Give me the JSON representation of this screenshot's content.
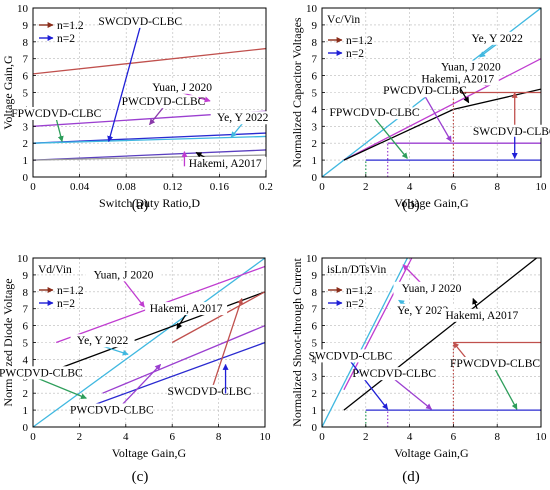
{
  "chart_data": [
    {
      "panel": "(a)",
      "type": "line",
      "xlabel": "Switch Duty Ratio,D",
      "ylabel": "Voltage Gain,G",
      "xlim": [
        0,
        0.2
      ],
      "ylim": [
        0,
        10
      ],
      "xticks": [
        "0",
        "0.04",
        "0.08",
        "0.12",
        "0.16",
        "0.2"
      ],
      "yticks": [
        "0",
        "1",
        "2",
        "3",
        "4",
        "5",
        "6",
        "7",
        "8",
        "9",
        "10"
      ],
      "legend": [
        {
          "label": "n=1.2",
          "color": "#8b2d1a"
        },
        {
          "label": "n=2",
          "color": "#1f1fd6"
        }
      ],
      "series": [
        {
          "color": "#c0504d",
          "x": [
            0,
            0.2
          ],
          "y": [
            6.1,
            7.6
          ]
        },
        {
          "color": "#9b3fd0",
          "x": [
            0,
            0.2
          ],
          "y": [
            3.0,
            3.9
          ]
        },
        {
          "color": "#2a2ad0",
          "x": [
            0,
            0.2
          ],
          "y": [
            2.0,
            2.6
          ]
        },
        {
          "color": "#40b8e0",
          "x": [
            0,
            0.2
          ],
          "y": [
            2.0,
            2.4
          ]
        },
        {
          "color": "#5a3fbf",
          "x": [
            0,
            0.2
          ],
          "y": [
            1.0,
            1.6
          ]
        },
        {
          "color": "#999999",
          "x": [
            0,
            0.2
          ],
          "y": [
            1.0,
            1.3
          ]
        }
      ],
      "annotations": [
        {
          "text": "SWCDVD-CLBC",
          "tx": 0.092,
          "ty": 9.0,
          "ax": 0.065,
          "ay": 2.1,
          "color": "#1f1fd6"
        },
        {
          "text": "Yuan, J 2020",
          "tx": 0.128,
          "ty": 5.1,
          "ax": 0.152,
          "ay": 4.5,
          "color": "#c03cd0"
        },
        {
          "text": "PWCDVD-CLBC",
          "tx": 0.112,
          "ty": 4.25,
          "ax": 0.1,
          "ay": 3.1,
          "color": "#8a3aaa"
        },
        {
          "text": "Ye, Y 2022",
          "tx": 0.18,
          "ty": 3.3,
          "ax": 0.17,
          "ay": 2.35,
          "color": "#40b8e0"
        },
        {
          "text": "FPWCDVD-CLBC",
          "tx": 0.02,
          "ty": 3.55,
          "ax": 0.025,
          "ay": 2.1,
          "color": "#2e9e5b"
        },
        {
          "text": "Hakemi, A2017",
          "tx": 0.165,
          "ty": 0.6,
          "ax": 0.14,
          "ay": 1.45,
          "color": "#000000"
        },
        {
          "text": "",
          "tx": 0.13,
          "ty": 0.75,
          "ax": 0.13,
          "ay": 1.5,
          "color": "#c03cd0"
        }
      ]
    },
    {
      "panel": "(b)",
      "type": "line",
      "xlabel": "Voltage Gain,G",
      "ylabel": "Normalized Capacitor Voltages",
      "xlim": [
        0,
        10
      ],
      "ylim": [
        0,
        10
      ],
      "xticks": [
        "0",
        "2",
        "4",
        "6",
        "8",
        "10"
      ],
      "yticks": [
        "0",
        "1",
        "2",
        "3",
        "4",
        "5",
        "6",
        "7",
        "8",
        "9",
        "10"
      ],
      "inner_label": "Vc/Vin",
      "legend": [
        {
          "label": "n=1.2",
          "color": "#8b2d1a"
        },
        {
          "label": "n=2",
          "color": "#1f1fd6"
        }
      ],
      "series": [
        {
          "color": "#40b8e0",
          "x": [
            0,
            10
          ],
          "y": [
            0,
            10
          ]
        },
        {
          "color": "#c03cd0",
          "x": [
            1,
            10
          ],
          "y": [
            1,
            7
          ]
        },
        {
          "color": "#000000",
          "x": [
            1,
            6,
            10
          ],
          "y": [
            1,
            4.0,
            5.2
          ]
        },
        {
          "color": "#c0504d",
          "x": [
            6,
            10
          ],
          "y": [
            5,
            5
          ]
        },
        {
          "color": "#9b3fd0",
          "x": [
            3,
            10
          ],
          "y": [
            2,
            2
          ]
        },
        {
          "color": "#2a2ad0",
          "x": [
            2,
            10
          ],
          "y": [
            1,
            1
          ]
        },
        {
          "color": "#c0504d",
          "x": [
            6,
            6
          ],
          "y": [
            0,
            5
          ],
          "dotted": true
        },
        {
          "color": "#9b3fd0",
          "x": [
            3,
            3
          ],
          "y": [
            0,
            2
          ],
          "dotted": true
        },
        {
          "color": "#2e9e5b",
          "x": [
            2,
            2
          ],
          "y": [
            0,
            1
          ],
          "dotted": true
        }
      ],
      "annotations": [
        {
          "text": "Ye, Y 2022",
          "tx": 8.0,
          "ty": 8.0,
          "ax": 7.2,
          "ay": 7.1,
          "color": "#40b8e0"
        },
        {
          "text": "Yuan, J 2020",
          "tx": 6.8,
          "ty": 6.3,
          "ax": 7.5,
          "ay": 5.4,
          "color": "#c03cd0"
        },
        {
          "text": "Hakemi, A2017",
          "tx": 6.2,
          "ty": 5.6,
          "ax": 6.7,
          "ay": 4.4,
          "color": "#000000"
        },
        {
          "text": "PWCDVD-CLBC",
          "tx": 4.7,
          "ty": 4.9,
          "ax": 5.9,
          "ay": 2.1,
          "color": "#9b3fd0"
        },
        {
          "text": "FPWCDVD-CLBC",
          "tx": 2.4,
          "ty": 3.6,
          "ax": 3.9,
          "ay": 1.1,
          "color": "#2e9e5b"
        },
        {
          "text": "SWCDVD-CLBC",
          "tx": 8.8,
          "ty": 2.5,
          "ax": 8.8,
          "ay": 5.0,
          "color": "#c0504d"
        },
        {
          "text": "",
          "tx": 8.8,
          "ty": 2.5,
          "ax": 8.8,
          "ay": 1.1,
          "color": "#1f1fd6"
        }
      ]
    },
    {
      "panel": "(c)",
      "type": "line",
      "xlabel": "Voltage Gain,G",
      "ylabel": "Normalized Diode Voltage",
      "xlim": [
        0,
        10
      ],
      "ylim": [
        0,
        10
      ],
      "xticks": [
        "0",
        "2",
        "4",
        "6",
        "8",
        "10"
      ],
      "yticks": [
        "0",
        "1",
        "2",
        "3",
        "4",
        "5",
        "6",
        "7",
        "8",
        "9",
        "10"
      ],
      "inner_label": "Vd/Vin",
      "legend": [
        {
          "label": "n=1.2",
          "color": "#8b2d1a"
        },
        {
          "label": "n=2",
          "color": "#1f1fd6"
        }
      ],
      "series": [
        {
          "color": "#40b8e0",
          "x": [
            0,
            10
          ],
          "y": [
            0,
            10
          ]
        },
        {
          "color": "#c03cd0",
          "x": [
            1,
            10
          ],
          "y": [
            5,
            9.5
          ]
        },
        {
          "color": "#000000",
          "x": [
            1,
            10
          ],
          "y": [
            3.4,
            8.0
          ]
        },
        {
          "color": "#c0504d",
          "x": [
            6,
            10
          ],
          "y": [
            5,
            8
          ]
        },
        {
          "color": "#9b3fd0",
          "x": [
            3,
            10
          ],
          "y": [
            2,
            6
          ]
        },
        {
          "color": "#2a2ad0",
          "x": [
            2,
            10
          ],
          "y": [
            1,
            5
          ]
        }
      ],
      "annotations": [
        {
          "text": "Yuan, J 2020",
          "tx": 3.9,
          "ty": 8.8,
          "ax": 4.8,
          "ay": 7.1,
          "color": "#c03cd0"
        },
        {
          "text": "Hakemi, A2017",
          "tx": 6.6,
          "ty": 6.8,
          "ax": 6.2,
          "ay": 5.8,
          "color": "#000000"
        },
        {
          "text": "Ye, Y 2022",
          "tx": 3.0,
          "ty": 4.9,
          "ax": 4.1,
          "ay": 4.3,
          "color": "#40b8e0"
        },
        {
          "text": "FPWCDVD-CLBC",
          "tx": 0.2,
          "ty": 3.0,
          "ax": 2.3,
          "ay": 1.7,
          "color": "#2e9e5b"
        },
        {
          "text": "SWCDVD-CLBC",
          "tx": 7.6,
          "ty": 1.9,
          "ax": 9.0,
          "ay": 7.6,
          "color": "#c0504d"
        },
        {
          "text": "",
          "tx": 8.3,
          "ty": 2.1,
          "ax": 8.3,
          "ay": 3.7,
          "color": "#1f1fd6"
        },
        {
          "text": "PWCDVD-CLBC",
          "tx": 3.4,
          "ty": 0.8,
          "ax": 5.5,
          "ay": 3.7,
          "color": "#9b3fd0"
        }
      ]
    },
    {
      "panel": "(d)",
      "type": "line",
      "xlabel": "Voltage Gain,G",
      "ylabel": "Normalized Shoot-through Current",
      "xlim": [
        0,
        10
      ],
      "ylim": [
        0,
        10
      ],
      "xticks": [
        "0",
        "2",
        "4",
        "6",
        "8",
        "10"
      ],
      "yticks": [
        "0",
        "1",
        "2",
        "3",
        "4",
        "5",
        "6",
        "7",
        "8",
        "9",
        "10"
      ],
      "inner_label": "isLn/DTsVin",
      "legend": [
        {
          "label": "n=1.2",
          "color": "#8b2d1a"
        },
        {
          "label": "n=2",
          "color": "#1f1fd6"
        }
      ],
      "series": [
        {
          "color": "#40b8e0",
          "x": [
            0,
            3.9
          ],
          "y": [
            0,
            10
          ]
        },
        {
          "color": "#c03cd0",
          "x": [
            1,
            4.1
          ],
          "y": [
            2.2,
            10
          ]
        },
        {
          "color": "#000000",
          "x": [
            1,
            9.8
          ],
          "y": [
            1,
            10
          ]
        },
        {
          "color": "#c0504d",
          "x": [
            6,
            10
          ],
          "y": [
            5,
            5
          ]
        },
        {
          "color": "#2a2ad0",
          "x": [
            2,
            10
          ],
          "y": [
            1,
            1
          ]
        },
        {
          "color": "#c0504d",
          "x": [
            6,
            6
          ],
          "y": [
            0,
            5
          ],
          "dotted": true
        },
        {
          "color": "#9b3fd0",
          "x": [
            3,
            3
          ],
          "y": [
            0,
            1
          ],
          "dotted": true
        },
        {
          "color": "#2e9e5b",
          "x": [
            2,
            2
          ],
          "y": [
            0,
            1
          ],
          "dotted": true
        }
      ],
      "annotations": [
        {
          "text": "Yuan, J 2020",
          "tx": 5.0,
          "ty": 8.0,
          "ax": 3.7,
          "ay": 9.6,
          "color": "#c03cd0"
        },
        {
          "text": "Ye, Y 2022",
          "tx": 4.6,
          "ty": 6.7,
          "ax": 3.5,
          "ay": 7.5,
          "color": "#40b8e0"
        },
        {
          "text": "Hakemi, A2017",
          "tx": 7.3,
          "ty": 6.4,
          "ax": 6.9,
          "ay": 7.6,
          "color": "#000000"
        },
        {
          "text": "SWCDVD-CLBC",
          "tx": 1.3,
          "ty": 4.0,
          "ax": 3.0,
          "ay": 1.05,
          "color": "#1f1fd6"
        },
        {
          "text": "",
          "tx": 6.7,
          "ty": 4.0,
          "ax": 6.0,
          "ay": 5.0,
          "color": "#c0504d"
        },
        {
          "text": "PWCDVD-CLBC",
          "tx": 3.3,
          "ty": 2.95,
          "ax": 5.0,
          "ay": 1.05,
          "color": "#9b3fd0"
        },
        {
          "text": "FPWCDVD-CLBC",
          "tx": 7.9,
          "ty": 3.55,
          "ax": 8.9,
          "ay": 1.05,
          "color": "#2e9e5b"
        }
      ]
    }
  ]
}
